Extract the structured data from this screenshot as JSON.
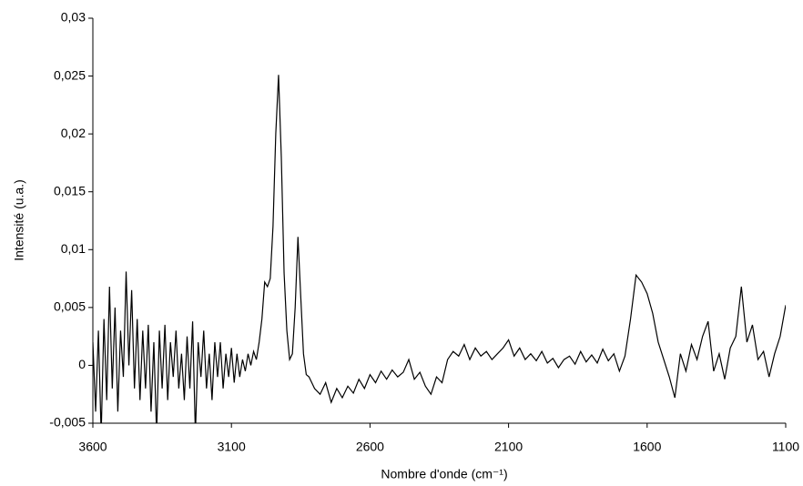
{
  "chart_data": {
    "type": "line",
    "xlabel": "Nombre d'onde (cm⁻¹)",
    "ylabel": "Intensité (u.a.)",
    "xlim": [
      3600,
      1100
    ],
    "xticks": [
      3600,
      3100,
      2600,
      2100,
      1600,
      1100
    ],
    "ylim": [
      -0.005,
      0.03
    ],
    "yticks": [
      {
        "value": -0.005,
        "label": "-0,005"
      },
      0,
      {
        "value": 0.005,
        "label": "0,005"
      },
      {
        "value": 0.01,
        "label": "0,01"
      },
      {
        "value": 0.015,
        "label": "0,015"
      },
      {
        "value": 0.02,
        "label": "0,02"
      },
      {
        "value": 0.025,
        "label": "0,025"
      },
      {
        "value": 0.03,
        "label": "0,03"
      }
    ],
    "grid": false,
    "series": [
      {
        "color": "#000000",
        "x": [
          3600,
          3590,
          3580,
          3570,
          3560,
          3550,
          3540,
          3530,
          3520,
          3510,
          3500,
          3490,
          3480,
          3470,
          3460,
          3450,
          3440,
          3430,
          3420,
          3410,
          3400,
          3390,
          3380,
          3370,
          3360,
          3350,
          3340,
          3330,
          3320,
          3310,
          3300,
          3290,
          3280,
          3270,
          3260,
          3250,
          3240,
          3230,
          3220,
          3210,
          3200,
          3190,
          3180,
          3170,
          3160,
          3150,
          3140,
          3130,
          3120,
          3110,
          3100,
          3090,
          3080,
          3070,
          3060,
          3050,
          3040,
          3030,
          3020,
          3010,
          3000,
          2990,
          2980,
          2970,
          2960,
          2950,
          2940,
          2930,
          2920,
          2910,
          2900,
          2890,
          2880,
          2870,
          2860,
          2850,
          2840,
          2830,
          2820,
          2810,
          2800,
          2780,
          2760,
          2740,
          2720,
          2700,
          2680,
          2660,
          2640,
          2620,
          2600,
          2580,
          2560,
          2540,
          2520,
          2500,
          2480,
          2460,
          2440,
          2420,
          2400,
          2380,
          2360,
          2340,
          2320,
          2300,
          2280,
          2260,
          2240,
          2220,
          2200,
          2180,
          2160,
          2140,
          2120,
          2100,
          2080,
          2060,
          2040,
          2020,
          2000,
          1980,
          1960,
          1940,
          1920,
          1900,
          1880,
          1860,
          1840,
          1820,
          1800,
          1780,
          1760,
          1740,
          1720,
          1700,
          1680,
          1660,
          1640,
          1620,
          1600,
          1580,
          1560,
          1540,
          1520,
          1500,
          1480,
          1460,
          1440,
          1420,
          1400,
          1380,
          1360,
          1340,
          1320,
          1300,
          1280,
          1260,
          1240,
          1220,
          1200,
          1180,
          1160,
          1140,
          1120,
          1100
        ],
        "values": [
          0.002,
          -0.004,
          0.003,
          -0.006,
          0.004,
          -0.003,
          0.0068,
          -0.002,
          0.005,
          -0.004,
          0.003,
          -0.001,
          0.0081,
          0.0,
          0.0065,
          -0.002,
          0.004,
          -0.003,
          0.003,
          -0.002,
          0.0035,
          -0.004,
          0.002,
          -0.006,
          0.003,
          -0.002,
          0.0035,
          -0.003,
          0.002,
          -0.001,
          0.003,
          -0.002,
          0.001,
          -0.003,
          0.0025,
          -0.002,
          0.0038,
          -0.006,
          0.002,
          -0.001,
          0.003,
          -0.002,
          0.001,
          -0.003,
          0.002,
          -0.001,
          0.002,
          -0.002,
          0.001,
          -0.001,
          0.0015,
          -0.0015,
          0.001,
          -0.001,
          0.0005,
          -0.0005,
          0.001,
          0.0,
          0.0012,
          0.0005,
          0.002,
          0.004,
          0.0072,
          0.0068,
          0.0075,
          0.012,
          0.02,
          0.0251,
          0.018,
          0.008,
          0.003,
          0.0005,
          0.001,
          0.005,
          0.0111,
          0.006,
          0.001,
          -0.0008,
          -0.001,
          -0.0015,
          -0.002,
          -0.0025,
          -0.0015,
          -0.0032,
          -0.002,
          -0.0028,
          -0.0018,
          -0.0024,
          -0.0012,
          -0.002,
          -0.0008,
          -0.0015,
          -0.0005,
          -0.0012,
          -0.0004,
          -0.001,
          -0.0006,
          0.0005,
          -0.0012,
          -0.0006,
          -0.0018,
          -0.0025,
          -0.001,
          -0.0015,
          0.0005,
          0.0012,
          0.0008,
          0.0018,
          0.0005,
          0.0015,
          0.0008,
          0.0012,
          0.0005,
          0.001,
          0.0015,
          0.0022,
          0.0008,
          0.0015,
          0.0005,
          0.001,
          0.0004,
          0.0012,
          0.0002,
          0.0006,
          -0.0002,
          0.0005,
          0.0008,
          0.0001,
          0.0012,
          0.0003,
          0.0009,
          0.0002,
          0.0014,
          0.0004,
          0.001,
          -0.0005,
          0.0008,
          0.004,
          0.0078,
          0.0072,
          0.0062,
          0.0045,
          0.002,
          0.0005,
          -0.001,
          -0.0028,
          0.001,
          -0.0005,
          0.0018,
          0.0005,
          0.0025,
          0.0038,
          -0.0005,
          0.001,
          -0.0012,
          0.0015,
          0.0025,
          0.0068,
          0.002,
          0.0035,
          0.0005,
          0.0012,
          -0.001,
          0.001,
          0.0025,
          0.0052
        ]
      }
    ]
  }
}
